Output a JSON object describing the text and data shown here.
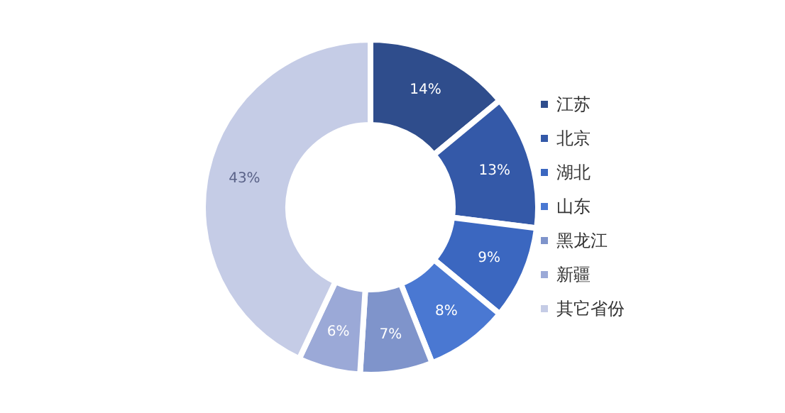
{
  "chart_data": {
    "type": "donut",
    "categories": [
      "江苏",
      "北京",
      "湖北",
      "山东",
      "黑龙江",
      "新疆",
      "其它省份"
    ],
    "values": [
      14,
      13,
      9,
      8,
      7,
      6,
      43
    ],
    "colors": [
      "#2f4d8c",
      "#3459a8",
      "#3b67c0",
      "#4a78d2",
      "#7f94cb",
      "#9ba9d7",
      "#c5cce6"
    ],
    "value_labels": [
      "14%",
      "13%",
      "9%",
      "8%",
      "7%",
      "6%",
      "43%"
    ],
    "legend": "right"
  }
}
